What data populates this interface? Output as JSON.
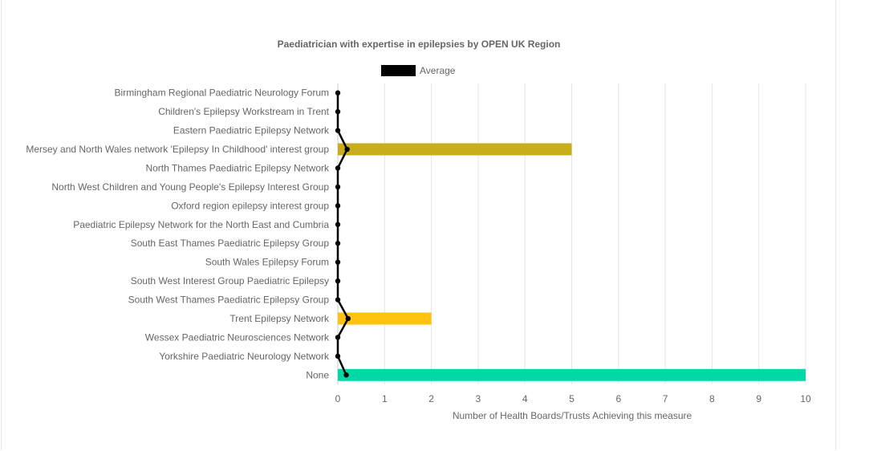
{
  "chart_data": {
    "type": "bar",
    "orientation": "horizontal",
    "title": "Paediatrician with expertise in epilepsies by OPEN UK Region",
    "xlabel": "Number of Health Boards/Trusts Achieving this measure",
    "ylabel": "",
    "xlim": [
      0,
      10
    ],
    "xticks": [
      0,
      1,
      2,
      3,
      4,
      5,
      6,
      7,
      8,
      9,
      10
    ],
    "grid": true,
    "legend_position": "top",
    "categories": [
      "Birmingham Regional Paediatric Neurology Forum",
      "Children's Epilepsy Workstream in Trent",
      "Eastern Paediatric Epilepsy Network",
      "Mersey and North Wales network 'Epilepsy In Childhood' interest group",
      "North Thames Paediatric Epilepsy Network",
      "North West Children and Young People's Epilepsy Interest Group",
      "Oxford region epilepsy interest group",
      "Paediatric Epilepsy Network for the North East and Cumbria",
      "South East Thames Paediatric Epilepsy Group",
      "South Wales Epilepsy Forum",
      "South West Interest Group Paediatric Epilepsy",
      "South West Thames Paediatric Epilepsy Group",
      "Trent Epilepsy Network",
      "Wessex Paediatric Neurosciences Network",
      "Yorkshire Paediatric Neurology Network",
      "None"
    ],
    "values": [
      0,
      0,
      0,
      5,
      0,
      0,
      0,
      0,
      0,
      0,
      0,
      0,
      2,
      0,
      0,
      10
    ],
    "bar_colors": [
      "#c9a8ba",
      "#7fb0d4",
      "#9fd89a",
      "#c8ad1c",
      "#d0a0e0",
      "#f0a080",
      "#a0d0f0",
      "#e0c060",
      "#b0e0a0",
      "#f0b0c0",
      "#a0a0f0",
      "#e0e080",
      "#ffc20e",
      "#c0e0e0",
      "#e0b0a0",
      "#00d9a5"
    ],
    "average_series": {
      "name": "Average",
      "color": "#000000",
      "values": [
        0,
        0,
        0,
        0.2,
        0,
        0,
        0,
        0,
        0,
        0,
        0,
        0,
        0.22,
        0,
        0,
        0.18
      ]
    }
  }
}
